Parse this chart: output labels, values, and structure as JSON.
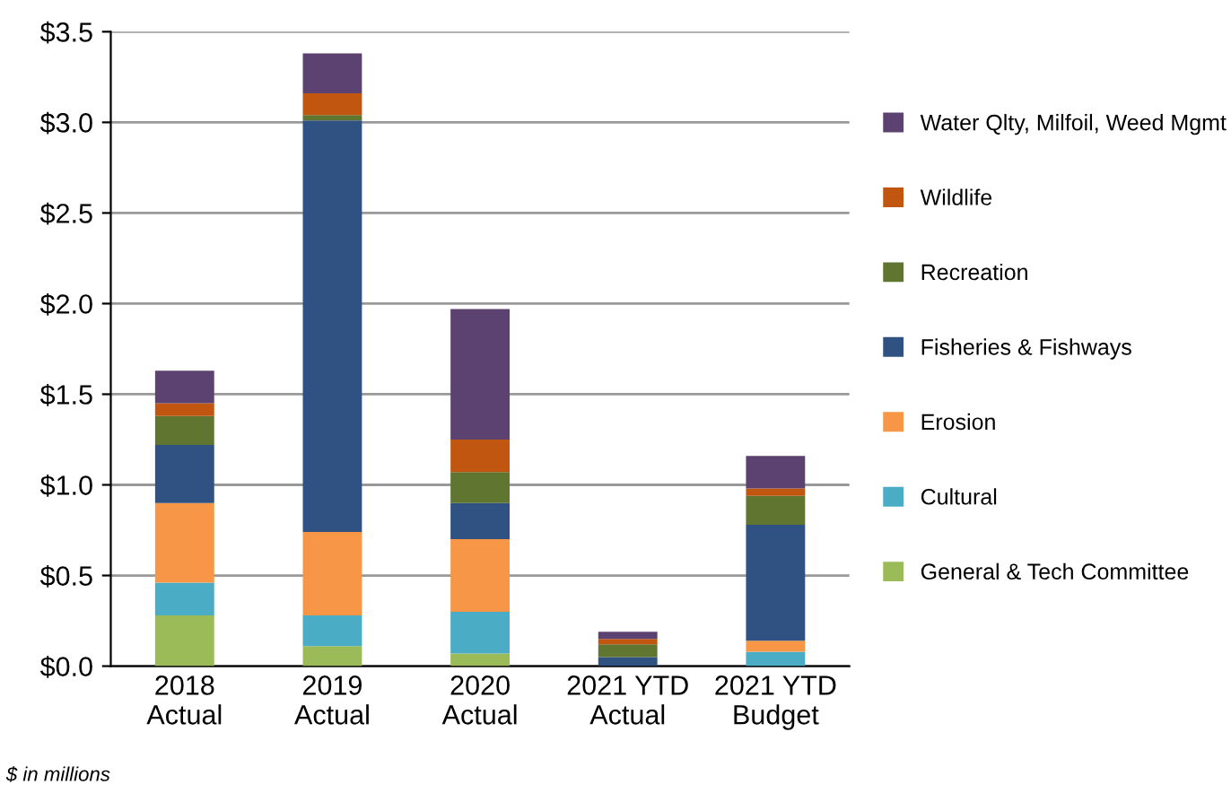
{
  "chart_data": {
    "type": "bar",
    "stacked": true,
    "categories": [
      "2018\nActual",
      "2019\nActual",
      "2020\nActual",
      "2021 YTD\nActual",
      "2021 YTD\nBudget"
    ],
    "series": [
      {
        "name": "General & Tech Committee",
        "color": "#9bbb59",
        "values": [
          0.28,
          0.11,
          0.07,
          null,
          null
        ]
      },
      {
        "name": "Cultural",
        "color": "#4bacc6",
        "values": [
          0.18,
          0.17,
          0.23,
          0,
          0.08
        ]
      },
      {
        "name": "Erosion",
        "color": "#f79646",
        "values": [
          0.44,
          0.46,
          0.4,
          0,
          0.06
        ]
      },
      {
        "name": "Fisheries & Fishways",
        "color": "#2f5283",
        "values": [
          0.32,
          2.27,
          0.2,
          0.05,
          0.64
        ]
      },
      {
        "name": "Recreation",
        "color": "#5f7530",
        "values": [
          0.16,
          0.03,
          0.17,
          0.07,
          0.16
        ]
      },
      {
        "name": "Wildlife",
        "color": "#c0560f",
        "values": [
          0.07,
          0.12,
          0.18,
          0.03,
          0.04
        ]
      },
      {
        "name": "Water Qlty, Milfoil, Weed Mgmt",
        "color": "#5c4270",
        "values": [
          0.18,
          0.22,
          0.72,
          0.04,
          0.18
        ]
      }
    ],
    "ylim": [
      0,
      3.5
    ],
    "yticks": [
      {
        "value": 0,
        "label": "$0.0"
      },
      {
        "value": 0.5,
        "label": "$0.5"
      },
      {
        "value": 1,
        "label": "$1.0"
      },
      {
        "value": 1.5,
        "label": "$1.5"
      },
      {
        "value": 2,
        "label": "$2.0"
      },
      {
        "value": 2.5,
        "label": "$2.5"
      },
      {
        "value": 3,
        "label": "$3.0"
      },
      {
        "value": 3.5,
        "label": "$3.5"
      }
    ],
    "grid": "y",
    "legend": "right",
    "annotations": [
      "$ in millions"
    ]
  }
}
